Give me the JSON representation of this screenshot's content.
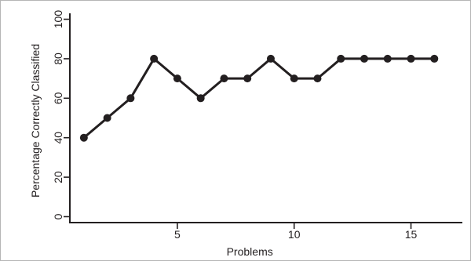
{
  "chart_data": {
    "type": "line",
    "title": "",
    "xlabel": "Problems",
    "ylabel": "Percentage Correctly Classified",
    "x": [
      1,
      2,
      3,
      4,
      5,
      6,
      7,
      8,
      9,
      10,
      11,
      12,
      13,
      14,
      15,
      16
    ],
    "series": [
      {
        "values": [
          40,
          50,
          60,
          80,
          70,
          60,
          70,
          70,
          80,
          70,
          70,
          80,
          80,
          80,
          80,
          80
        ]
      }
    ],
    "xlim": [
      0.4,
      17.2
    ],
    "ylim": [
      -3,
      103
    ],
    "x_ticks": [
      5,
      10,
      15
    ],
    "y_ticks": [
      0,
      20,
      40,
      60,
      80,
      100
    ],
    "grid": false,
    "legend": "none",
    "colors": {
      "line": "#231f20",
      "axis": "#231f20",
      "border": "#b5b5b5"
    }
  }
}
